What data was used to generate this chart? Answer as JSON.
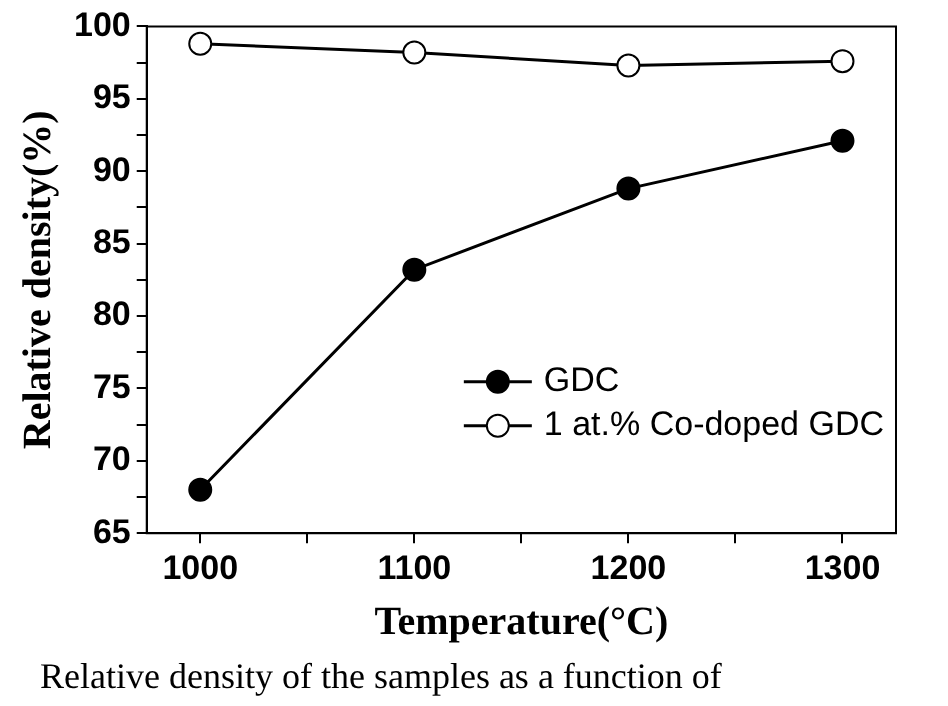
{
  "chart_data": {
    "type": "line",
    "xlabel": "Temperature(°C)",
    "ylabel": "Relative density(%)",
    "x": [
      1000,
      1100,
      1200,
      1300
    ],
    "series": [
      {
        "name": "GDC",
        "color": "#000000",
        "values": [
          68,
          83.2,
          88.8,
          92.1
        ]
      },
      {
        "name": "1 at.% Co-doped GDC",
        "color": "#ffffff",
        "values": [
          98.8,
          98.2,
          97.3,
          97.6
        ]
      }
    ],
    "xlim": [
      975,
      1325
    ],
    "xticks": [
      1000,
      {
        "value": 1050,
        "label": null
      },
      1100,
      {
        "value": 1150,
        "label": null
      },
      1200,
      {
        "value": 1250,
        "label": null
      },
      1300
    ],
    "ylim": [
      65,
      100
    ],
    "yticks": [
      65,
      {
        "value": 67.5,
        "label": null
      },
      70,
      {
        "value": 72.5,
        "label": null
      },
      75,
      {
        "value": 77.5,
        "label": null
      },
      80,
      {
        "value": 82.5,
        "label": null
      },
      85,
      {
        "value": 87.5,
        "label": null
      },
      90,
      {
        "value": 92.5,
        "label": null
      },
      95,
      {
        "value": 97.5,
        "label": null
      },
      100
    ],
    "grid": false,
    "legend": "right",
    "line_style": "solid",
    "marker": "circle",
    "annotations": [
      "Relative density of the samples as a function of"
    ]
  }
}
